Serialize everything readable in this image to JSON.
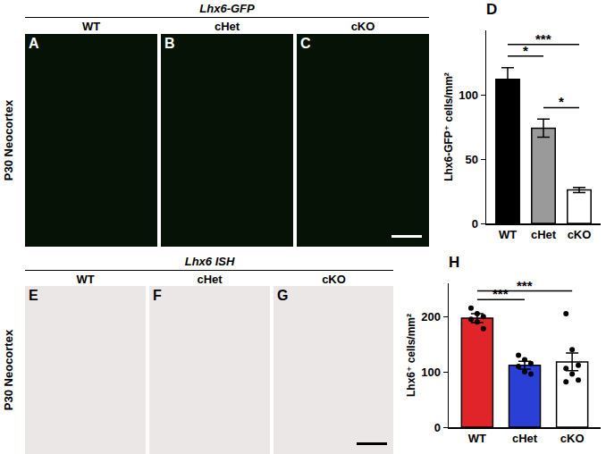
{
  "panels": [
    {
      "title": "Lhx6-GFP",
      "row_label": "P30 Neocortex",
      "color": "#061206",
      "text_color": "#ffffff",
      "images": [
        {
          "letter": "A",
          "label": "WT"
        },
        {
          "letter": "B",
          "label": "cHet"
        },
        {
          "letter": "C",
          "label": "cKO"
        }
      ]
    },
    {
      "title": "Lhx6 ISH",
      "row_label": "P30 Neocortex",
      "color": "#ebe7e6",
      "text_color": "#000000",
      "images": [
        {
          "letter": "E",
          "label": "WT"
        },
        {
          "letter": "F",
          "label": "cHet"
        },
        {
          "letter": "G",
          "label": "cKO"
        }
      ]
    }
  ],
  "chart_data": [
    {
      "type": "bar",
      "title": "D",
      "categories": [
        "WT",
        "cHet",
        "cKO"
      ],
      "values": [
        112,
        74,
        26
      ],
      "errors": [
        9,
        7,
        2
      ],
      "colors": [
        "#000000",
        "#9a9a9a",
        "#ffffff"
      ],
      "ylabel": "Lhx6-GFP⁺ cells/mm²",
      "ylim": [
        0,
        150
      ],
      "yticks": [
        0,
        50,
        100
      ],
      "significance": [
        {
          "from": "WT",
          "to": "cHet",
          "label": "*"
        },
        {
          "from": "cHet",
          "to": "cKO",
          "label": "*"
        },
        {
          "from": "WT",
          "to": "cKO",
          "label": "***"
        }
      ]
    },
    {
      "type": "bar",
      "title": "H",
      "categories": [
        "WT",
        "cHet",
        "cKO"
      ],
      "values": [
        197,
        112,
        118
      ],
      "errors": [
        8,
        7,
        16
      ],
      "points": [
        [
          215,
          205,
          200,
          195,
          190,
          178
        ],
        [
          130,
          122,
          115,
          110,
          100,
          96
        ],
        [
          205,
          140,
          112,
          106,
          96,
          85,
          82
        ]
      ],
      "colors": [
        "#e0242a",
        "#2a3fd6",
        "#ffffff"
      ],
      "ylabel": "Lhx6⁺ cells/mm²",
      "ylim": [
        0,
        260
      ],
      "yticks": [
        0,
        100,
        200
      ],
      "significance": [
        {
          "from": "WT",
          "to": "cHet",
          "label": "***"
        },
        {
          "from": "WT",
          "to": "cKO",
          "label": "***"
        }
      ]
    }
  ]
}
